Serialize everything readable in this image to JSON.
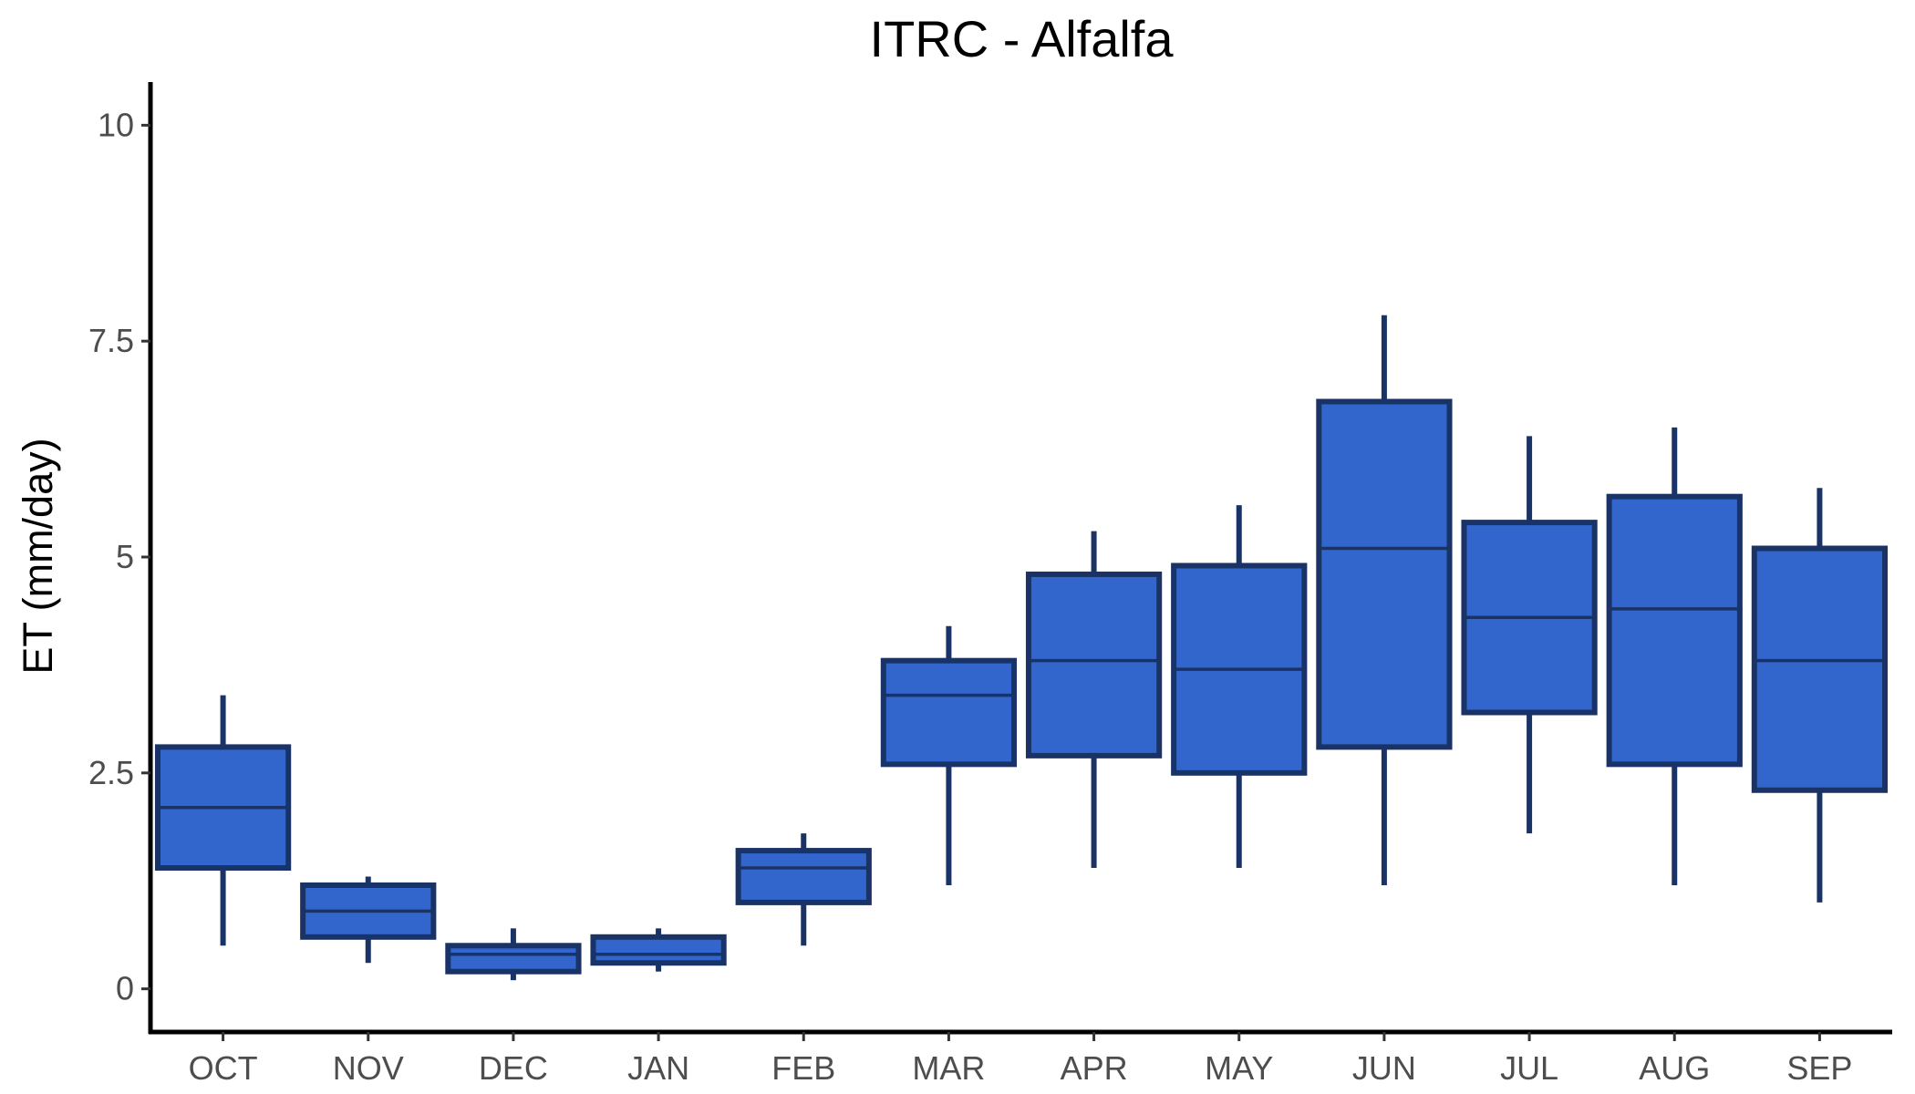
{
  "chart_data": {
    "type": "box",
    "title": "ITRC - Alfalfa",
    "xlabel": "",
    "ylabel": "ET (mm/day)",
    "ylim": [
      -0.5,
      10.5
    ],
    "yticks": [
      0,
      2.5,
      5,
      7.5,
      10
    ],
    "ytick_labels": [
      "0",
      "2.5",
      "5",
      "7.5",
      "10"
    ],
    "categories": [
      "OCT",
      "NOV",
      "DEC",
      "JAN",
      "FEB",
      "MAR",
      "APR",
      "MAY",
      "JUN",
      "JUL",
      "AUG",
      "SEP"
    ],
    "boxes": [
      {
        "min": 0.5,
        "q1": 1.4,
        "median": 2.1,
        "q3": 2.8,
        "max": 3.4
      },
      {
        "min": 0.3,
        "q1": 0.6,
        "median": 0.9,
        "q3": 1.2,
        "max": 1.3
      },
      {
        "min": 0.1,
        "q1": 0.2,
        "median": 0.4,
        "q3": 0.5,
        "max": 0.7
      },
      {
        "min": 0.2,
        "q1": 0.3,
        "median": 0.4,
        "q3": 0.6,
        "max": 0.7
      },
      {
        "min": 0.5,
        "q1": 1.0,
        "median": 1.4,
        "q3": 1.6,
        "max": 1.8
      },
      {
        "min": 1.2,
        "q1": 2.6,
        "median": 3.4,
        "q3": 3.8,
        "max": 4.2
      },
      {
        "min": 1.4,
        "q1": 2.7,
        "median": 3.8,
        "q3": 4.8,
        "max": 5.3
      },
      {
        "min": 1.4,
        "q1": 2.5,
        "median": 3.7,
        "q3": 4.9,
        "max": 5.6
      },
      {
        "min": 1.2,
        "q1": 2.8,
        "median": 5.1,
        "q3": 6.8,
        "max": 7.8
      },
      {
        "min": 1.8,
        "q1": 3.2,
        "median": 4.3,
        "q3": 5.4,
        "max": 6.4
      },
      {
        "min": 1.2,
        "q1": 2.6,
        "median": 4.4,
        "q3": 5.7,
        "max": 6.5
      },
      {
        "min": 1.0,
        "q1": 2.3,
        "median": 3.8,
        "q3": 5.1,
        "max": 5.8
      }
    ],
    "colors": {
      "fill": "#3366cc",
      "outline": "#1a3366",
      "axis": "#000000",
      "tick_text": "#4d4d4d"
    },
    "grid": false,
    "legend": "none"
  }
}
